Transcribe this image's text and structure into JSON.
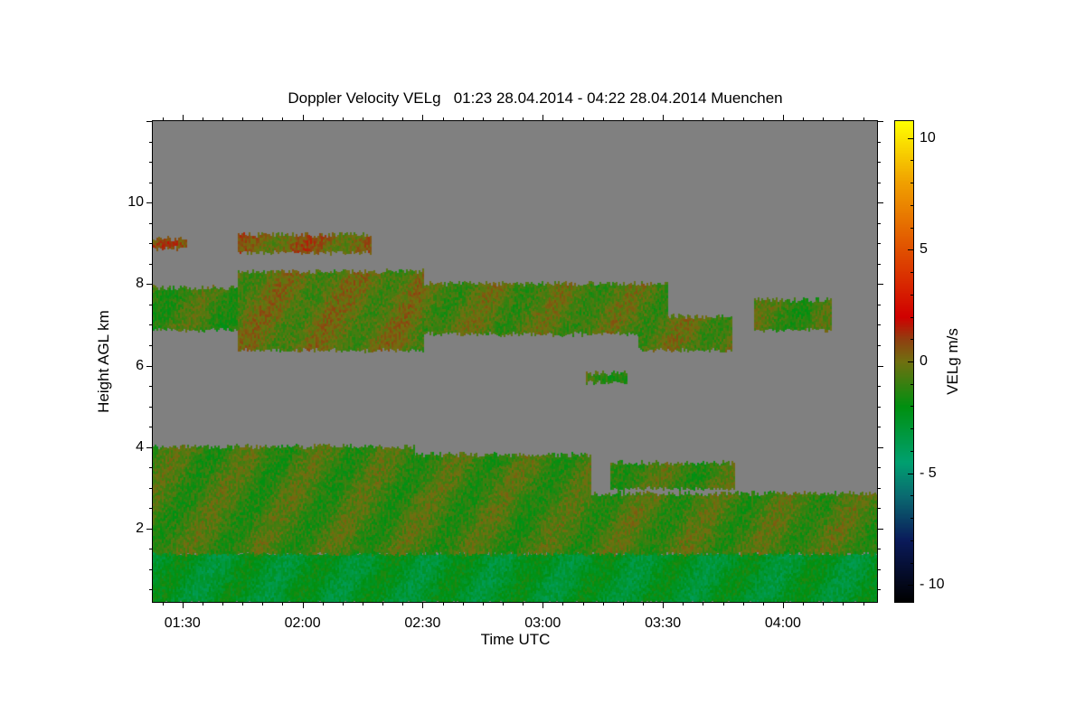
{
  "chart_data": {
    "type": "heatmap",
    "title": "Doppler Velocity VELg   01:23 28.04.2014 - 04:22 28.04.2014 Muenchen",
    "xlabel": "Time UTC",
    "ylabel": "Height AGL km",
    "colorbar_label": "VELg m/s",
    "xlim": [
      "01:22.6",
      "04:23.5"
    ],
    "x_ticks": [
      "01:30",
      "02:00",
      "02:30",
      "03:00",
      "03:30",
      "04:00"
    ],
    "ylim": [
      0.2,
      12.0
    ],
    "y_ticks": [
      2,
      4,
      6,
      8,
      10
    ],
    "colorbar_range": [
      -10.75,
      10.75
    ],
    "colorbar_ticks": [
      10,
      5,
      0,
      -5,
      -10
    ],
    "background_no_signal": "#808080",
    "colormap": [
      {
        "v": -10.75,
        "c": "#000000"
      },
      {
        "v": -8,
        "c": "#0a1a5a"
      },
      {
        "v": -6,
        "c": "#0a6a70"
      },
      {
        "v": -4.5,
        "c": "#00a070"
      },
      {
        "v": -2,
        "c": "#009010"
      },
      {
        "v": 0,
        "c": "#707010"
      },
      {
        "v": 1,
        "c": "#904010"
      },
      {
        "v": 2,
        "c": "#d00000"
      },
      {
        "v": 5,
        "c": "#e05000"
      },
      {
        "v": 8,
        "c": "#f0a000"
      },
      {
        "v": 10.75,
        "c": "#ffff00"
      }
    ],
    "regions": [
      {
        "t0": "01:22.6",
        "t1": "04:23.5",
        "base": 0.2,
        "top": 1.4,
        "vel": -2.6
      },
      {
        "t0": "01:22.6",
        "t1": "02:28",
        "base": 1.4,
        "top": 4.0,
        "vel": -0.9
      },
      {
        "t0": "02:28",
        "t1": "03:12",
        "base": 1.4,
        "top": 3.8,
        "vel": -0.9
      },
      {
        "t0": "03:12",
        "t1": "04:23.5",
        "base": 1.4,
        "top": 2.85,
        "vel": -0.8
      },
      {
        "t0": "03:17",
        "t1": "03:48",
        "base": 3.0,
        "top": 3.6,
        "vel": -0.9
      },
      {
        "t0": "01:22.6",
        "t1": "01:44",
        "base": 6.9,
        "top": 7.9,
        "vel": -1.0
      },
      {
        "t0": "01:44",
        "t1": "02:30",
        "base": 6.4,
        "top": 8.3,
        "vel": -0.3
      },
      {
        "t0": "02:30",
        "t1": "03:31",
        "base": 6.8,
        "top": 8.0,
        "vel": -0.6
      },
      {
        "t0": "03:24",
        "t1": "03:47",
        "base": 6.4,
        "top": 7.2,
        "vel": -0.5
      },
      {
        "t0": "03:53",
        "t1": "04:12",
        "base": 6.9,
        "top": 7.6,
        "vel": -0.9
      },
      {
        "t0": "03:11",
        "t1": "03:21",
        "base": 5.6,
        "top": 5.8,
        "vel": -1.0
      },
      {
        "t0": "01:22.6",
        "t1": "01:31",
        "base": 8.9,
        "top": 9.1,
        "vel": 0.5
      },
      {
        "t0": "01:44",
        "t1": "02:17",
        "base": 8.8,
        "top": 9.2,
        "vel": 0.3
      }
    ]
  }
}
